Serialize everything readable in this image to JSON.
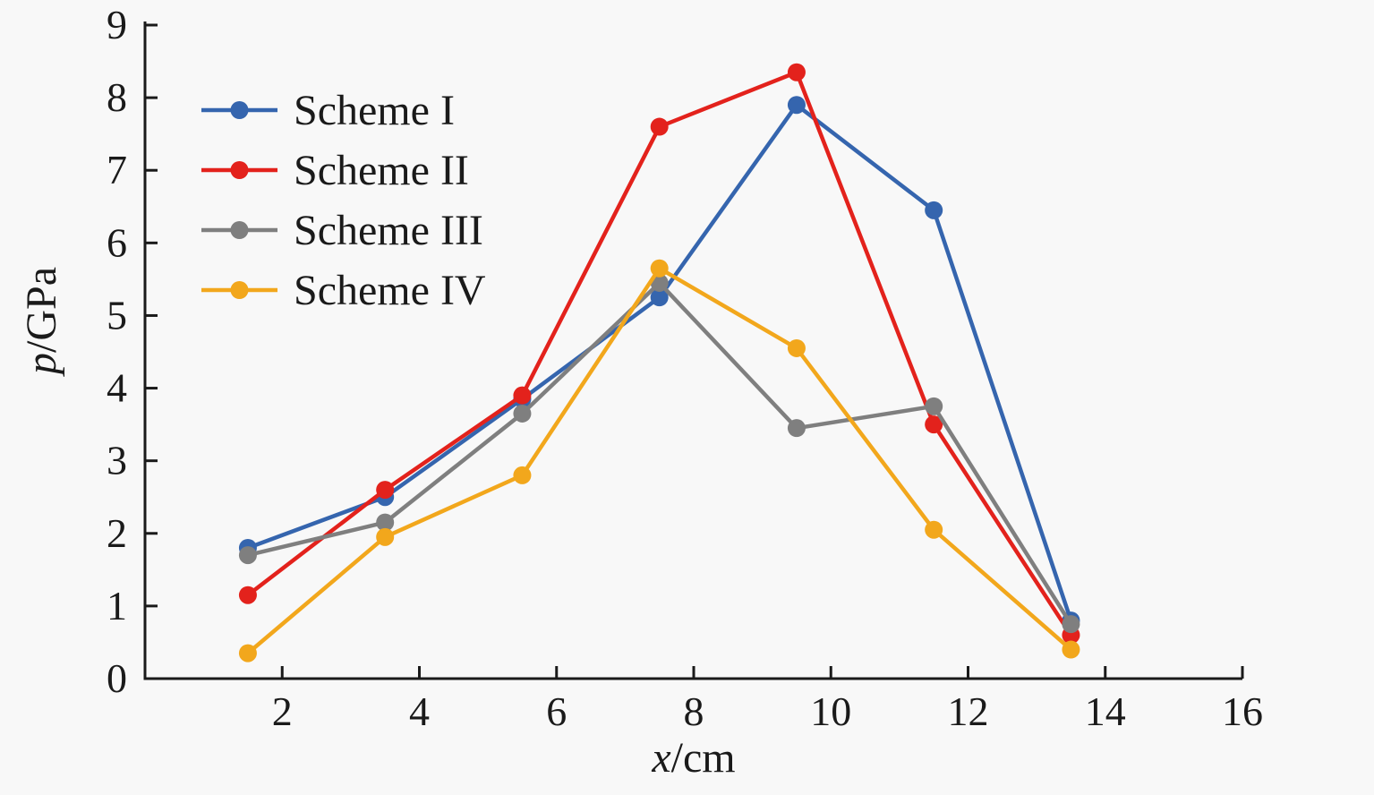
{
  "chart_data": {
    "type": "line",
    "title": "",
    "xlabel": "x/cm",
    "xlabel_var": "x",
    "xlabel_unit": "/cm",
    "ylabel": "p/GPa",
    "ylabel_var": "p",
    "ylabel_unit": "/GPa",
    "xlim": [
      0,
      16
    ],
    "ylim": [
      0,
      9
    ],
    "x_ticks": [
      2,
      4,
      6,
      8,
      10,
      12,
      14,
      16
    ],
    "y_ticks": [
      0,
      1,
      2,
      3,
      4,
      5,
      6,
      7,
      8,
      9
    ],
    "grid": false,
    "legend_position": "upper-left",
    "x": [
      1.5,
      3.5,
      5.5,
      7.5,
      9.5,
      11.5,
      13.5
    ],
    "series": [
      {
        "name": "Scheme I",
        "color": "#3565ae",
        "values": [
          1.8,
          2.5,
          3.85,
          5.25,
          7.9,
          6.45,
          0.8
        ]
      },
      {
        "name": "Scheme II",
        "color": "#e3221c",
        "values": [
          1.15,
          2.6,
          3.9,
          7.6,
          8.35,
          3.5,
          0.6
        ]
      },
      {
        "name": "Scheme III",
        "color": "#7f7f7f",
        "values": [
          1.7,
          2.15,
          3.65,
          5.45,
          3.45,
          3.75,
          0.75
        ]
      },
      {
        "name": "Scheme IV",
        "color": "#f2a71c",
        "values": [
          0.35,
          1.95,
          2.8,
          5.65,
          4.55,
          2.05,
          0.4
        ]
      }
    ]
  },
  "colors": {
    "background": "#f8f8f8",
    "axis": "#1a1a1a",
    "text": "#1a1a1a"
  }
}
